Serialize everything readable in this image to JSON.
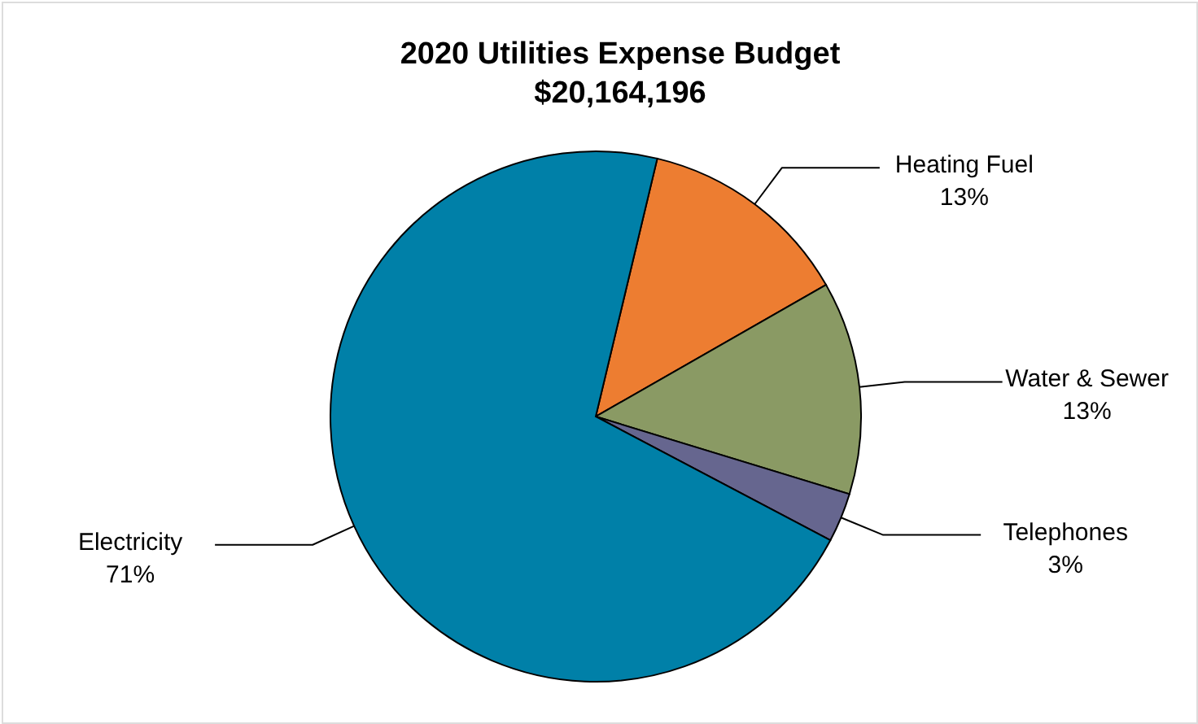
{
  "chart_data": {
    "type": "pie",
    "title": "2020 Utilities Expense Budget",
    "subtitle": "$20,164,196",
    "categories": [
      "Heating Fuel",
      "Water & Sewer",
      "Telephones",
      "Electricity"
    ],
    "values": [
      13,
      13,
      3,
      71
    ],
    "value_labels": [
      "13%",
      "13%",
      "3%",
      "71%"
    ],
    "colors": [
      "#ed7d31",
      "#8a9a64",
      "#66668f",
      "#0080a8"
    ]
  }
}
